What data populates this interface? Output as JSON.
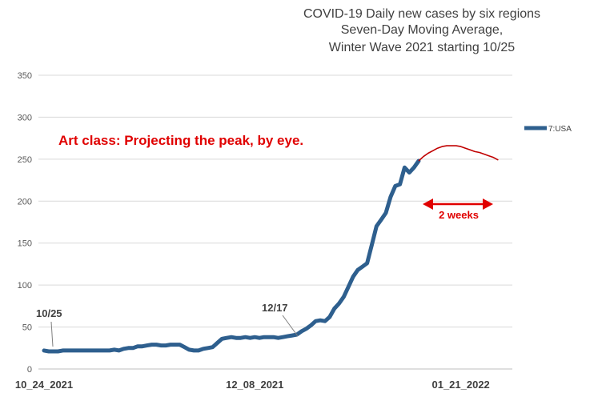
{
  "chart_data": {
    "type": "line",
    "title_lines": [
      "COVID-19 Daily new cases by six regions",
      "Seven-Day Moving Average,",
      "Winter Wave 2021 starting 10/25"
    ],
    "title_colors": [
      "#404040",
      "#404040",
      "#e00000"
    ],
    "ylim": [
      0,
      350
    ],
    "yticks": [
      "0",
      "50",
      "100",
      "150",
      "200",
      "250",
      "300",
      "350"
    ],
    "xticks": [
      {
        "label": "10_24_2021",
        "index": 0
      },
      {
        "label": "12_08_2021",
        "index": 45
      },
      {
        "label": "01_21_2022",
        "index": 89
      }
    ],
    "grid": true,
    "legend_position": "right",
    "series": [
      {
        "name": "7:USA",
        "color": "#2e5f8e",
        "values": [
          22,
          21,
          21,
          21,
          22,
          22,
          22,
          22,
          22,
          22,
          22,
          22,
          22,
          22,
          22,
          23,
          22,
          24,
          25,
          25,
          27,
          27,
          28,
          29,
          29,
          28,
          28,
          29,
          29,
          29,
          26,
          23,
          22,
          22,
          24,
          25,
          26,
          31,
          36,
          37,
          38,
          37,
          37,
          38,
          37,
          38,
          37,
          38,
          38,
          38,
          37,
          38,
          39,
          40,
          41,
          45,
          48,
          52,
          57,
          58,
          57,
          62,
          72,
          78,
          86,
          98,
          110,
          118,
          122,
          126,
          148,
          170,
          178,
          186,
          205,
          218,
          220,
          240,
          234,
          240,
          248
        ]
      }
    ],
    "projection": {
      "color": "#c00000",
      "values": [
        248,
        253,
        257,
        260,
        263,
        265,
        266,
        266,
        266,
        265,
        263,
        261,
        259,
        258,
        256,
        254,
        252,
        249
      ]
    },
    "annotations": {
      "art_class": "Art class:  Projecting the peak, by eye.",
      "two_weeks": "2 weeks",
      "label_1025": "10/25",
      "label_1217": "12/17"
    },
    "annotation_color": "#e00000"
  }
}
